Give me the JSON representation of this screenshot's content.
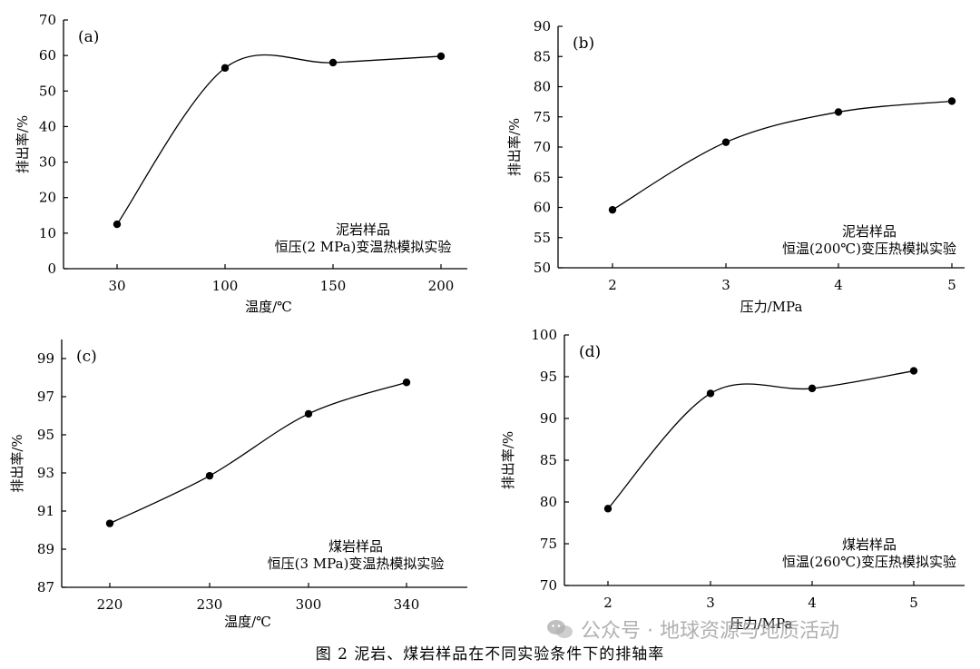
{
  "caption": "图 2   泥岩、煤岩样品在不同实验条件下的排轴率",
  "watermark": "公众号 · 地球资源与地质活动",
  "chart_data": [
    {
      "type": "line",
      "panel": "(a)",
      "xlabel": "温度/℃",
      "ylabel": "排出率/%",
      "categories": [
        "30",
        "100",
        "150",
        "200"
      ],
      "values": [
        12.5,
        56.5,
        58.0,
        59.8
      ],
      "ylim": [
        0,
        70
      ],
      "yticks": [
        "0",
        "10",
        "20",
        "30",
        "40",
        "50",
        "60",
        "70"
      ],
      "annotation": [
        "泥岩样品",
        "恒压(2 MPa)变温热模拟实验"
      ],
      "grid": false
    },
    {
      "type": "line",
      "panel": "(b)",
      "xlabel": "压力/MPa",
      "ylabel": "排出率/%",
      "categories": [
        "2",
        "3",
        "4",
        "5"
      ],
      "values": [
        59.6,
        70.8,
        75.8,
        77.6
      ],
      "ylim": [
        50,
        90
      ],
      "yticks": [
        "50",
        "55",
        "60",
        "65",
        "70",
        "75",
        "80",
        "85",
        "90"
      ],
      "annotation": [
        "泥岩样品",
        "恒温(200℃)变压热模拟实验"
      ],
      "grid": false
    },
    {
      "type": "line",
      "panel": "(c)",
      "xlabel": "温度/℃",
      "ylabel": "排出率/%",
      "categories": [
        "220",
        "230",
        "300",
        "340"
      ],
      "values": [
        90.35,
        92.85,
        96.1,
        97.75
      ],
      "ylim": [
        87,
        100
      ],
      "yticks": [
        "87",
        "89",
        "91",
        "93",
        "95",
        "97",
        "99"
      ],
      "annotation": [
        "煤岩样品",
        "恒压(3 MPa)变温热模拟实验"
      ],
      "grid": false
    },
    {
      "type": "line",
      "panel": "(d)",
      "xlabel": "压力/MPa",
      "ylabel": "排出率/%",
      "categories": [
        "2",
        "3",
        "4",
        "5"
      ],
      "values": [
        79.2,
        93.0,
        93.6,
        95.7
      ],
      "ylim": [
        70,
        100
      ],
      "yticks": [
        "70",
        "75",
        "80",
        "85",
        "90",
        "95",
        "100"
      ],
      "annotation": [
        "煤岩样品",
        "恒温(260℃)变压热模拟实验"
      ],
      "grid": false
    }
  ]
}
